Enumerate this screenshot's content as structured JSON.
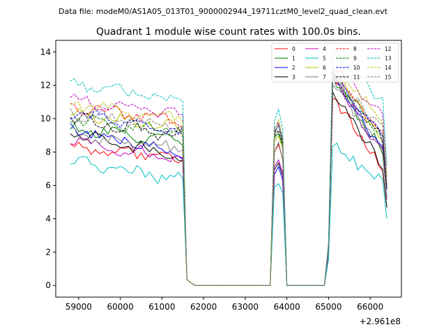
{
  "suptitle": "Data file: modeM0/AS1A05_013T01_9000002944_19711cztM0_level2_quad_clean.evt",
  "chart_data": {
    "type": "line",
    "title": "Quadrant 1 module wise count rates with 100.0s bins.",
    "xlabel": "",
    "ylabel": "",
    "x_offset_label": "+2.961e8",
    "xlim": [
      58450,
      66750
    ],
    "ylim": [
      -0.7,
      14.7
    ],
    "xticks": [
      59000,
      60000,
      61000,
      62000,
      63000,
      64000,
      65000,
      66000
    ],
    "yticks": [
      0,
      2,
      4,
      6,
      8,
      10,
      12,
      14
    ],
    "legend_position": "top-right",
    "legend_columns": 4,
    "segments": [
      {
        "start": 58800,
        "end": 61500,
        "step": 100
      },
      {
        "start": 61600,
        "end": 61700,
        "step": 100
      },
      {
        "start": 61800,
        "end": 63600,
        "step": 100
      },
      {
        "start": 63700,
        "end": 63900,
        "step": 100
      },
      {
        "start": 64000,
        "end": 64900,
        "step": 100
      },
      {
        "start": 65000,
        "end": 66400,
        "step": 100
      }
    ],
    "series": [
      {
        "name": "0",
        "color": "#ff0000",
        "dash": "solid",
        "base": 7.5,
        "slope": 0.22,
        "late": 7.8,
        "spike": 8.4,
        "mid2": 1.45,
        "seed": 1
      },
      {
        "name": "1",
        "color": "#008000",
        "dash": "solid",
        "base": 8.7,
        "slope": 0.16,
        "late": 8.8,
        "spike": 9.3,
        "mid2": 1.4,
        "seed": 2
      },
      {
        "name": "2",
        "color": "#0000ff",
        "dash": "solid",
        "base": 8.0,
        "slope": 0.35,
        "late": 8.7,
        "spike": 7.0,
        "mid2": 1.45,
        "seed": 3
      },
      {
        "name": "3",
        "color": "#000000",
        "dash": "solid",
        "base": 7.7,
        "slope": 0.35,
        "late": 7.8,
        "spike": 7.3,
        "mid2": 1.5,
        "seed": 4
      },
      {
        "name": "4",
        "color": "#bf00bf",
        "dash": "solid",
        "base": 7.5,
        "slope": 0.3,
        "late": 8.6,
        "spike": 7.5,
        "mid2": 1.45,
        "seed": 5
      },
      {
        "name": "5",
        "color": "#00bfbf",
        "dash": "solid",
        "base": 6.3,
        "slope": 0.3,
        "late": 6.7,
        "spike": 6.2,
        "mid2": 1.25,
        "seed": 6
      },
      {
        "name": "6",
        "color": "#bfbf00",
        "dash": "solid",
        "base": 9.4,
        "slope": 0.25,
        "late": 9.6,
        "spike": 9.1,
        "mid2": 1.35,
        "seed": 7
      },
      {
        "name": "7",
        "color": "#808080",
        "dash": "solid",
        "base": 8.1,
        "slope": 0.25,
        "late": 8.7,
        "spike": 8.4,
        "mid2": 1.4,
        "seed": 8
      },
      {
        "name": "8",
        "color": "#ff0000",
        "dash": "dashed",
        "base": 9.9,
        "slope": 0.22,
        "late": 10.0,
        "spike": 9.6,
        "mid2": 1.25,
        "seed": 9
      },
      {
        "name": "9",
        "color": "#008000",
        "dash": "dashed",
        "base": 9.2,
        "slope": 0.2,
        "late": 9.7,
        "spike": 9.5,
        "mid2": 1.3,
        "seed": 10
      },
      {
        "name": "10",
        "color": "#0000ff",
        "dash": "dashed",
        "base": 9.2,
        "slope": 0.3,
        "late": 9.7,
        "spike": 9.7,
        "mid2": 1.3,
        "seed": 11
      },
      {
        "name": "11",
        "color": "#000000",
        "dash": "dashed",
        "base": 9.0,
        "slope": 0.25,
        "late": 9.6,
        "spike": 9.4,
        "mid2": 1.3,
        "seed": 12
      },
      {
        "name": "12",
        "color": "#bf00bf",
        "dash": "dashed",
        "base": 10.3,
        "slope": 0.2,
        "late": 11.1,
        "spike": 9.9,
        "mid2": 1.2,
        "seed": 13
      },
      {
        "name": "13",
        "color": "#00bfbf",
        "dash": "dashed",
        "base": 11.0,
        "slope": 0.28,
        "late": 12.0,
        "spike": 10.4,
        "mid2": 1.17,
        "seed": 14
      },
      {
        "name": "14",
        "color": "#bfbf00",
        "dash": "dashed",
        "base": 10.1,
        "slope": 0.2,
        "late": 10.9,
        "spike": 9.8,
        "mid2": 1.2,
        "seed": 15
      },
      {
        "name": "15",
        "color": "#808080",
        "dash": "dashed",
        "base": 9.5,
        "slope": 0.22,
        "late": 10.1,
        "spike": 9.5,
        "mid2": 1.25,
        "seed": 16
      }
    ]
  }
}
